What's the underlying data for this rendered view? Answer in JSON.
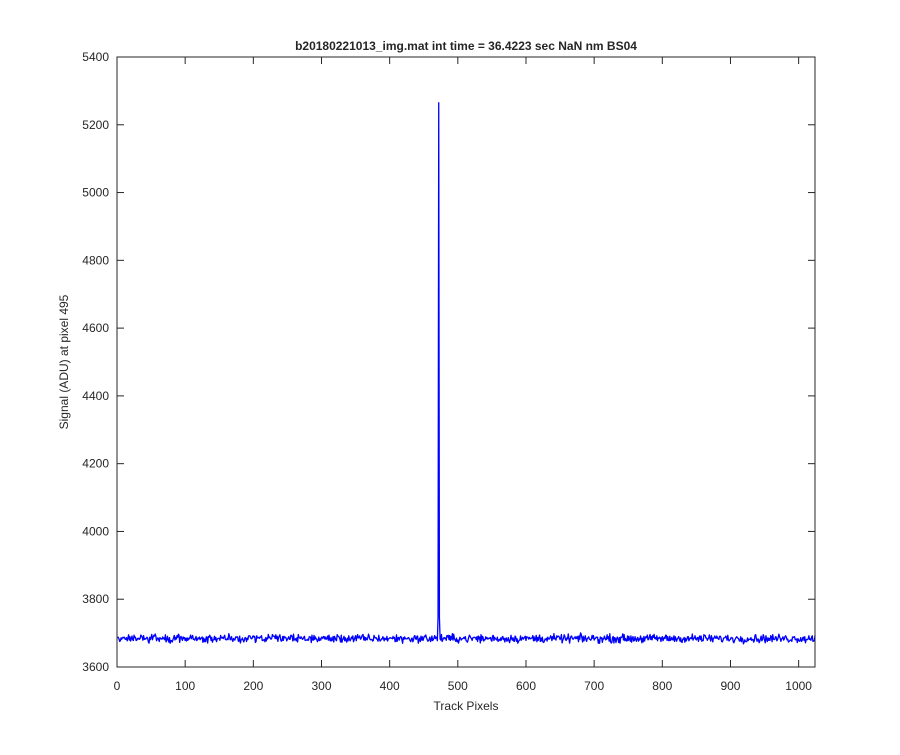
{
  "chart_data": {
    "type": "line",
    "title": "b20180221013_img.mat int time = 36.4223 sec  NaN nm BS04",
    "xlabel": "Track Pixels",
    "ylabel": "Signal (ADU) at pixel 495",
    "xlim": [
      0,
      1024
    ],
    "ylim": [
      3600,
      5400
    ],
    "xticks": [
      0,
      100,
      200,
      300,
      400,
      500,
      600,
      700,
      800,
      900,
      1000
    ],
    "yticks": [
      3600,
      3800,
      4000,
      4200,
      4400,
      4600,
      4800,
      5000,
      5200,
      5400
    ],
    "grid": false,
    "legend": "none",
    "series": [
      {
        "color": "#0000ff",
        "baseline": 3684,
        "noise_amplitude": 12,
        "x_range": [
          1,
          1024
        ],
        "peak": {
          "x": 472,
          "y": 5265
        }
      }
    ]
  }
}
